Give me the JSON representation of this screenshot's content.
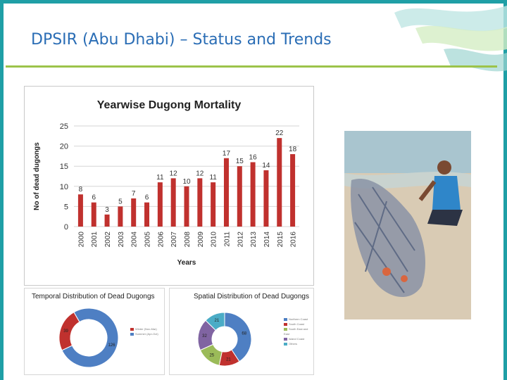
{
  "slide": {
    "title": "DPSIR (Abu Dhabi) – Status and Trends"
  },
  "chart_data": [
    {
      "type": "bar",
      "title": "Yearwise Dugong Mortality",
      "xlabel": "Years",
      "ylabel": "No of dead dugongs",
      "categories": [
        "2000",
        "2001",
        "2002",
        "2003",
        "2004",
        "2005",
        "2006",
        "2007",
        "2008",
        "2009",
        "2010",
        "2011",
        "2012",
        "2013",
        "2014",
        "2015",
        "2016"
      ],
      "values": [
        8,
        6,
        3,
        5,
        7,
        6,
        11,
        12,
        10,
        12,
        11,
        17,
        15,
        16,
        14,
        22,
        18
      ],
      "ylim": [
        0,
        25
      ],
      "yticks": [
        0,
        5,
        10,
        15,
        20,
        25
      ],
      "grid": true,
      "bar_color": "#c0312e"
    },
    {
      "type": "pie",
      "title": "Temporal Distribution of Dead Dugongs",
      "labels": [
        "Winter (Nov-Mar)",
        "Summer (Apr-Oct)"
      ],
      "values": [
        39,
        126
      ],
      "value_labels": [
        "39",
        "126"
      ],
      "colors": [
        "#c0312e",
        "#4e7fc3"
      ]
    },
    {
      "type": "pie",
      "title": "Spatial Distribution of Dead Dugongs",
      "labels": [
        "Northern Coast",
        "South Coast",
        "South East and East",
        "Island Coast",
        "Others"
      ],
      "values": [
        68,
        21,
        25,
        32,
        21
      ],
      "value_labels": [
        "68",
        "21",
        "25",
        "32",
        "21"
      ],
      "colors": [
        "#4e7fc3",
        "#c0312e",
        "#9bbb59",
        "#8064a2",
        "#4bacc6"
      ]
    }
  ],
  "colors": {
    "frame": "#1f9fa6",
    "title": "#2a6db5",
    "rule": "#9cc34a"
  },
  "photo": {
    "icon": "field-photo-icon"
  }
}
